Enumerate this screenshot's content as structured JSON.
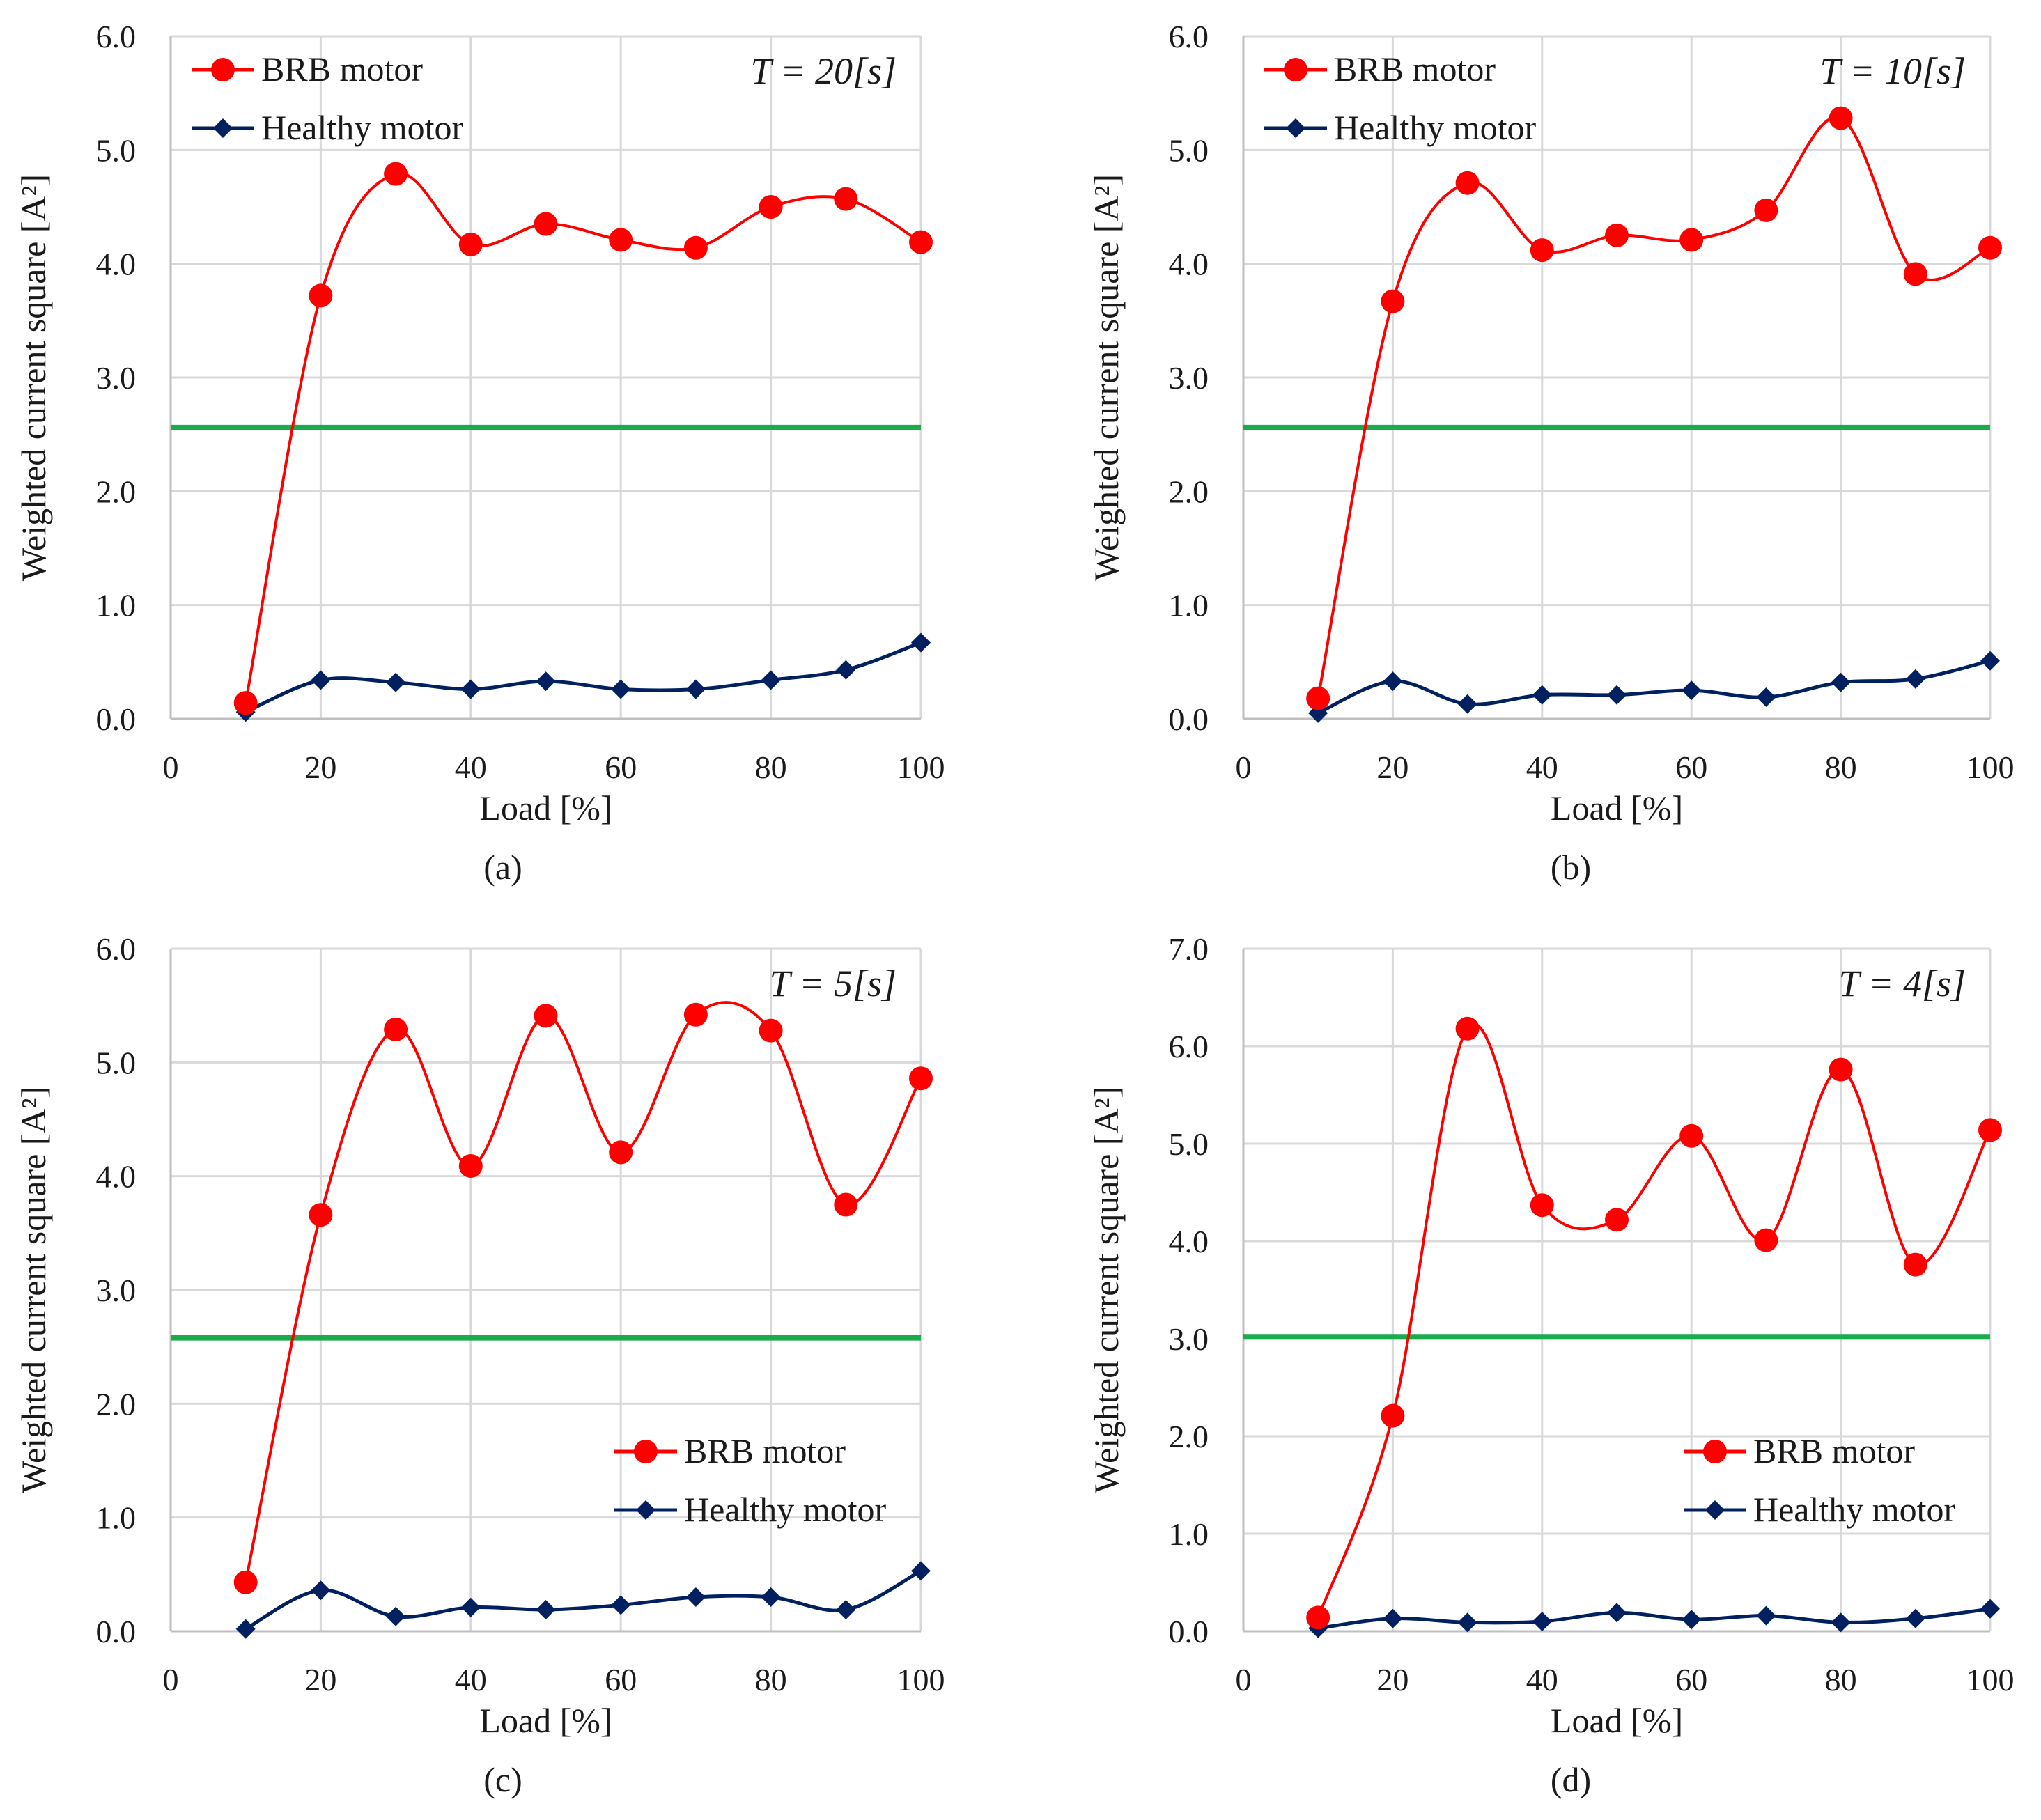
{
  "chart_data": [
    {
      "type": "line",
      "panel_label": "(a)",
      "annotation": "T = 20[s]",
      "xlabel": "Load [%]",
      "ylabel": "Weighted current square [A²]",
      "xlim": [
        0,
        100
      ],
      "ylim": [
        0,
        6
      ],
      "xticks": [
        "0",
        "20",
        "40",
        "60",
        "80",
        "100"
      ],
      "yticks": [
        "0.0",
        "1.0",
        "2.0",
        "3.0",
        "4.0",
        "5.0",
        "6.0"
      ],
      "threshold": 2.56,
      "threshold_color": "#1aac4a",
      "legend_position": "top-left",
      "x": [
        10,
        20,
        30,
        40,
        50,
        60,
        70,
        80,
        90,
        100
      ],
      "series": [
        {
          "name": "BRB motor",
          "color": "#ff0000",
          "marker": "circle",
          "values": [
            0.14,
            3.72,
            4.79,
            4.17,
            4.35,
            4.21,
            4.14,
            4.5,
            4.57,
            4.19
          ]
        },
        {
          "name": "Healthy motor",
          "color": "#002060",
          "marker": "diamond",
          "values": [
            0.06,
            0.34,
            0.32,
            0.26,
            0.33,
            0.26,
            0.26,
            0.34,
            0.43,
            0.67
          ]
        }
      ]
    },
    {
      "type": "line",
      "panel_label": "(b)",
      "annotation": "T = 10[s]",
      "xlabel": "Load [%]",
      "ylabel": "Weighted current square [A²]",
      "xlim": [
        0,
        100
      ],
      "ylim": [
        0,
        6
      ],
      "xticks": [
        "0",
        "20",
        "40",
        "60",
        "80",
        "100"
      ],
      "yticks": [
        "0.0",
        "1.0",
        "2.0",
        "3.0",
        "4.0",
        "5.0",
        "6.0"
      ],
      "threshold": 2.56,
      "threshold_color": "#1aac4a",
      "legend_position": "top-left",
      "x": [
        10,
        20,
        30,
        40,
        50,
        60,
        70,
        80,
        90,
        100
      ],
      "series": [
        {
          "name": "BRB motor",
          "color": "#ff0000",
          "marker": "circle",
          "values": [
            0.18,
            3.67,
            4.71,
            4.12,
            4.25,
            4.21,
            4.47,
            5.28,
            3.91,
            4.14
          ]
        },
        {
          "name": "Healthy motor",
          "color": "#002060",
          "marker": "diamond",
          "values": [
            0.05,
            0.33,
            0.13,
            0.21,
            0.21,
            0.25,
            0.19,
            0.32,
            0.35,
            0.51
          ]
        }
      ]
    },
    {
      "type": "line",
      "panel_label": "(c)",
      "annotation": "T = 5[s]",
      "xlabel": "Load [%]",
      "ylabel": "Weighted current square [A²]",
      "xlim": [
        0,
        100
      ],
      "ylim": [
        0,
        6
      ],
      "xticks": [
        "0",
        "20",
        "40",
        "60",
        "80",
        "100"
      ],
      "yticks": [
        "0.0",
        "1.0",
        "2.0",
        "3.0",
        "4.0",
        "5.0",
        "6.0"
      ],
      "threshold": 2.58,
      "threshold_color": "#1aac4a",
      "legend_position": "bottom-right",
      "x": [
        10,
        20,
        30,
        40,
        50,
        60,
        70,
        80,
        90,
        100
      ],
      "series": [
        {
          "name": "BRB motor",
          "color": "#ff0000",
          "marker": "circle",
          "values": [
            0.43,
            3.66,
            5.29,
            4.09,
            5.41,
            4.21,
            5.42,
            5.28,
            3.75,
            4.86
          ]
        },
        {
          "name": "Healthy motor",
          "color": "#002060",
          "marker": "diamond",
          "values": [
            0.02,
            0.36,
            0.13,
            0.21,
            0.19,
            0.23,
            0.3,
            0.3,
            0.19,
            0.53
          ]
        }
      ]
    },
    {
      "type": "line",
      "panel_label": "(d)",
      "annotation": "T = 4[s]",
      "xlabel": "Load [%]",
      "ylabel": "Weighted current square [A²]",
      "xlim": [
        0,
        100
      ],
      "ylim": [
        0,
        7
      ],
      "xticks": [
        "0",
        "20",
        "40",
        "60",
        "80",
        "100"
      ],
      "yticks": [
        "0.0",
        "1.0",
        "2.0",
        "3.0",
        "4.0",
        "5.0",
        "6.0",
        "7.0"
      ],
      "threshold": 3.02,
      "threshold_color": "#1aac4a",
      "legend_position": "bottom-right",
      "x": [
        10,
        20,
        30,
        40,
        50,
        60,
        70,
        80,
        90,
        100
      ],
      "series": [
        {
          "name": "BRB motor",
          "color": "#ff0000",
          "marker": "circle",
          "values": [
            0.14,
            2.21,
            6.18,
            4.37,
            4.22,
            5.08,
            4.01,
            5.76,
            3.76,
            5.14
          ]
        },
        {
          "name": "Healthy motor",
          "color": "#002060",
          "marker": "diamond",
          "values": [
            0.03,
            0.13,
            0.09,
            0.1,
            0.19,
            0.12,
            0.16,
            0.09,
            0.13,
            0.23
          ]
        }
      ]
    }
  ]
}
